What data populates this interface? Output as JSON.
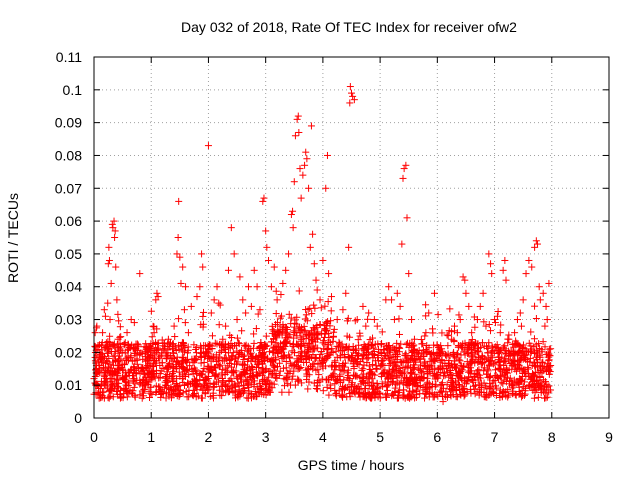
{
  "chart_data": {
    "type": "scatter",
    "title": "Day 032 of 2018, Rate Of TEC Index for receiver ofw2",
    "xlabel": "GPS time / hours",
    "ylabel": "ROTI / TECUs",
    "xlim": [
      0,
      9
    ],
    "ylim": [
      0,
      0.11
    ],
    "xticks": [
      "0",
      "1",
      "2",
      "3",
      "4",
      "5",
      "6",
      "7",
      "8",
      "9"
    ],
    "yticks": [
      "0",
      "0.01",
      "0.02",
      "0.03",
      "0.04",
      "0.05",
      "0.06",
      "0.07",
      "0.08",
      "0.09",
      "0.1",
      "0.11"
    ],
    "grid": true,
    "marker": "+",
    "color": "#ff0000",
    "series": [
      {
        "name": "ROTI",
        "points": [
          [
            0.0,
            0.012
          ],
          [
            0.02,
            0.026
          ],
          [
            0.03,
            0.01
          ],
          [
            0.05,
            0.028
          ],
          [
            0.06,
            0.014
          ],
          [
            0.08,
            0.009
          ],
          [
            0.1,
            0.015
          ],
          [
            0.12,
            0.018
          ],
          [
            0.15,
            0.026
          ],
          [
            0.18,
            0.033
          ],
          [
            0.2,
            0.031
          ],
          [
            0.22,
            0.012
          ],
          [
            0.24,
            0.035
          ],
          [
            0.25,
            0.047
          ],
          [
            0.26,
            0.052
          ],
          [
            0.27,
            0.048
          ],
          [
            0.28,
            0.03
          ],
          [
            0.3,
            0.041
          ],
          [
            0.32,
            0.059
          ],
          [
            0.33,
            0.058
          ],
          [
            0.35,
            0.06
          ],
          [
            0.36,
            0.055
          ],
          [
            0.37,
            0.057
          ],
          [
            0.38,
            0.046
          ],
          [
            0.4,
            0.036
          ],
          [
            0.42,
            0.024
          ],
          [
            0.45,
            0.016
          ],
          [
            0.5,
            0.012
          ],
          [
            0.55,
            0.009
          ],
          [
            0.6,
            0.022
          ],
          [
            0.65,
            0.03
          ],
          [
            0.7,
            0.012
          ],
          [
            0.75,
            0.018
          ],
          [
            0.8,
            0.044
          ],
          [
            0.85,
            0.015
          ],
          [
            0.9,
            0.01
          ],
          [
            0.95,
            0.02
          ],
          [
            1.0,
            0.014
          ],
          [
            1.05,
            0.026
          ],
          [
            1.08,
            0.036
          ],
          [
            1.1,
            0.038
          ],
          [
            1.12,
            0.037
          ],
          [
            1.15,
            0.016
          ],
          [
            1.2,
            0.022
          ],
          [
            1.25,
            0.01
          ],
          [
            1.3,
            0.024
          ],
          [
            1.35,
            0.018
          ],
          [
            1.4,
            0.028
          ],
          [
            1.45,
            0.05
          ],
          [
            1.47,
            0.055
          ],
          [
            1.48,
            0.066
          ],
          [
            1.5,
            0.049
          ],
          [
            1.52,
            0.041
          ],
          [
            1.55,
            0.046
          ],
          [
            1.58,
            0.033
          ],
          [
            1.6,
            0.04
          ],
          [
            1.65,
            0.026
          ],
          [
            1.7,
            0.034
          ],
          [
            1.75,
            0.018
          ],
          [
            1.8,
            0.037
          ],
          [
            1.85,
            0.04
          ],
          [
            1.88,
            0.05
          ],
          [
            1.9,
            0.046
          ],
          [
            1.95,
            0.022
          ],
          [
            2.0,
            0.083
          ],
          [
            2.05,
            0.032
          ],
          [
            2.1,
            0.036
          ],
          [
            2.15,
            0.04
          ],
          [
            2.18,
            0.035
          ],
          [
            2.2,
            0.02
          ],
          [
            2.25,
            0.024
          ],
          [
            2.3,
            0.028
          ],
          [
            2.35,
            0.045
          ],
          [
            2.4,
            0.058
          ],
          [
            2.45,
            0.05
          ],
          [
            2.5,
            0.03
          ],
          [
            2.55,
            0.043
          ],
          [
            2.6,
            0.036
          ],
          [
            2.65,
            0.032
          ],
          [
            2.7,
            0.04
          ],
          [
            2.75,
            0.034
          ],
          [
            2.8,
            0.045
          ],
          [
            2.85,
            0.04
          ],
          [
            2.9,
            0.033
          ],
          [
            2.95,
            0.066
          ],
          [
            2.97,
            0.067
          ],
          [
            3.0,
            0.057
          ],
          [
            3.02,
            0.052
          ],
          [
            3.05,
            0.048
          ],
          [
            3.1,
            0.04
          ],
          [
            3.15,
            0.046
          ],
          [
            3.2,
            0.036
          ],
          [
            3.25,
            0.028
          ],
          [
            3.3,
            0.041
          ],
          [
            3.35,
            0.045
          ],
          [
            3.4,
            0.05
          ],
          [
            3.45,
            0.062
          ],
          [
            3.47,
            0.063
          ],
          [
            3.48,
            0.058
          ],
          [
            3.5,
            0.072
          ],
          [
            3.52,
            0.086
          ],
          [
            3.55,
            0.091
          ],
          [
            3.57,
            0.092
          ],
          [
            3.58,
            0.087
          ],
          [
            3.6,
            0.076
          ],
          [
            3.62,
            0.067
          ],
          [
            3.65,
            0.074
          ],
          [
            3.68,
            0.077
          ],
          [
            3.7,
            0.081
          ],
          [
            3.72,
            0.079
          ],
          [
            3.75,
            0.07
          ],
          [
            3.78,
            0.052
          ],
          [
            3.8,
            0.089
          ],
          [
            3.82,
            0.056
          ],
          [
            3.85,
            0.047
          ],
          [
            3.88,
            0.042
          ],
          [
            3.9,
            0.039
          ],
          [
            3.95,
            0.036
          ],
          [
            4.0,
            0.048
          ],
          [
            4.05,
            0.07
          ],
          [
            4.08,
            0.08
          ],
          [
            4.1,
            0.044
          ],
          [
            4.15,
            0.037
          ],
          [
            4.2,
            0.027
          ],
          [
            4.25,
            0.03
          ],
          [
            4.3,
            0.022
          ],
          [
            4.35,
            0.033
          ],
          [
            4.4,
            0.038
          ],
          [
            4.45,
            0.052
          ],
          [
            4.47,
            0.096
          ],
          [
            4.48,
            0.101
          ],
          [
            4.5,
            0.099
          ],
          [
            4.52,
            0.098
          ],
          [
            4.55,
            0.097
          ],
          [
            4.6,
            0.03
          ],
          [
            4.65,
            0.025
          ],
          [
            4.7,
            0.034
          ],
          [
            4.75,
            0.028
          ],
          [
            4.8,
            0.032
          ],
          [
            4.85,
            0.022
          ],
          [
            4.9,
            0.03
          ],
          [
            4.95,
            0.028
          ],
          [
            5.0,
            0.02
          ],
          [
            5.05,
            0.016
          ],
          [
            5.1,
            0.036
          ],
          [
            5.15,
            0.04
          ],
          [
            5.2,
            0.036
          ],
          [
            5.25,
            0.03
          ],
          [
            5.3,
            0.038
          ],
          [
            5.35,
            0.034
          ],
          [
            5.38,
            0.053
          ],
          [
            5.4,
            0.073
          ],
          [
            5.42,
            0.076
          ],
          [
            5.45,
            0.077
          ],
          [
            5.47,
            0.061
          ],
          [
            5.5,
            0.044
          ],
          [
            5.55,
            0.03
          ],
          [
            5.6,
            0.024
          ],
          [
            5.65,
            0.02
          ],
          [
            5.7,
            0.015
          ],
          [
            5.75,
            0.012
          ],
          [
            5.8,
            0.026
          ],
          [
            5.85,
            0.032
          ],
          [
            5.9,
            0.018
          ],
          [
            5.95,
            0.038
          ],
          [
            6.0,
            0.022
          ],
          [
            6.05,
            0.01
          ],
          [
            6.1,
            0.005
          ],
          [
            6.15,
            0.008
          ],
          [
            6.2,
            0.016
          ],
          [
            6.25,
            0.024
          ],
          [
            6.3,
            0.028
          ],
          [
            6.35,
            0.026
          ],
          [
            6.4,
            0.03
          ],
          [
            6.45,
            0.043
          ],
          [
            6.48,
            0.042
          ],
          [
            6.5,
            0.038
          ],
          [
            6.55,
            0.034
          ],
          [
            6.6,
            0.026
          ],
          [
            6.65,
            0.022
          ],
          [
            6.7,
            0.03
          ],
          [
            6.75,
            0.034
          ],
          [
            6.8,
            0.038
          ],
          [
            6.85,
            0.028
          ],
          [
            6.9,
            0.05
          ],
          [
            6.93,
            0.047
          ],
          [
            6.95,
            0.044
          ],
          [
            7.0,
            0.03
          ],
          [
            7.05,
            0.031
          ],
          [
            7.1,
            0.026
          ],
          [
            7.15,
            0.045
          ],
          [
            7.18,
            0.048
          ],
          [
            7.2,
            0.042
          ],
          [
            7.25,
            0.024
          ],
          [
            7.3,
            0.01
          ],
          [
            7.35,
            0.026
          ],
          [
            7.4,
            0.03
          ],
          [
            7.45,
            0.032
          ],
          [
            7.5,
            0.036
          ],
          [
            7.55,
            0.044
          ],
          [
            7.6,
            0.048
          ],
          [
            7.65,
            0.046
          ],
          [
            7.7,
            0.052
          ],
          [
            7.73,
            0.054
          ],
          [
            7.75,
            0.053
          ],
          [
            7.78,
            0.04
          ],
          [
            7.8,
            0.036
          ],
          [
            7.85,
            0.038
          ],
          [
            7.88,
            0.028
          ],
          [
            7.9,
            0.034
          ],
          [
            7.92,
            0.03
          ],
          [
            7.95,
            0.041
          ],
          [
            7.98,
            0.016
          ]
        ]
      }
    ]
  }
}
